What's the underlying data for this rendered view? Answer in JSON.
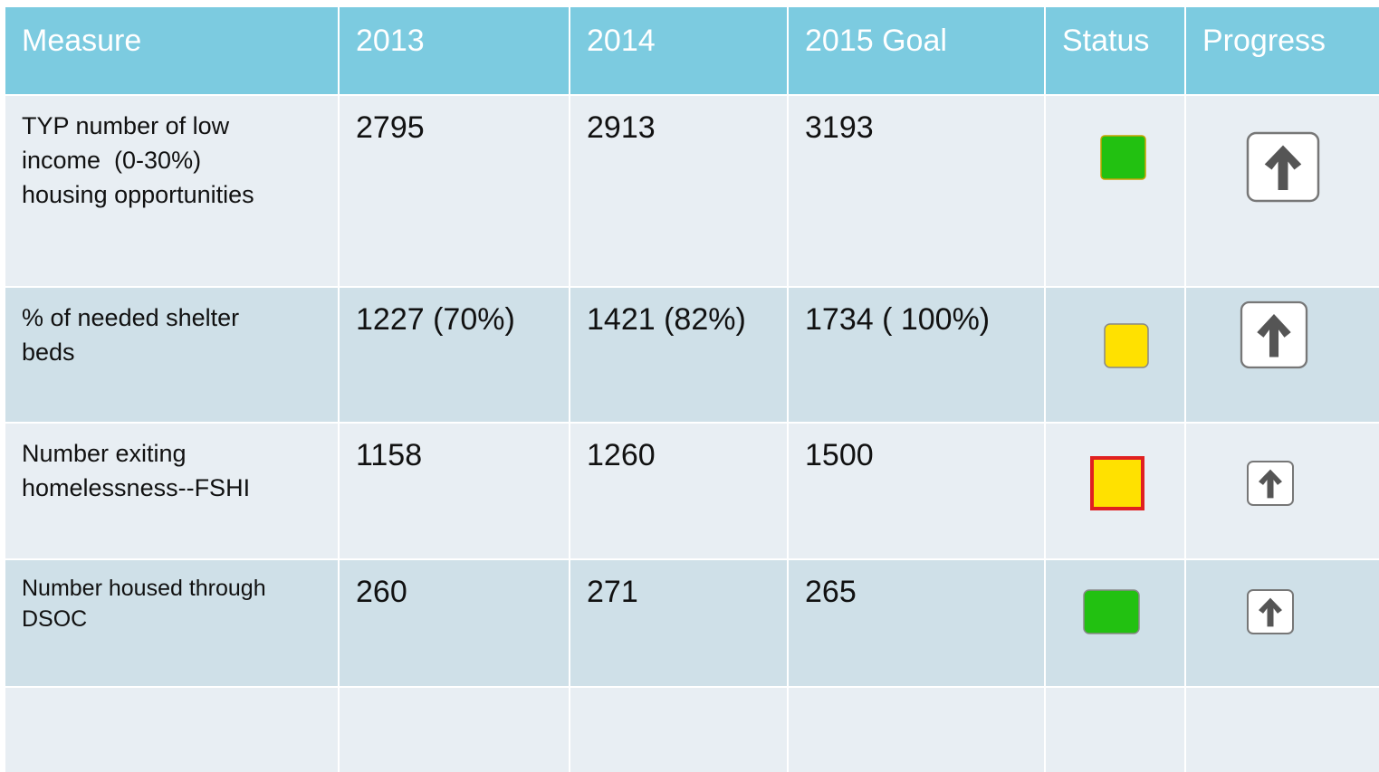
{
  "table": {
    "header": [
      "Measure",
      "2013",
      "2014",
      "2015 Goal",
      "Status",
      "Progress"
    ],
    "rows": [
      {
        "measure": [
          "TYP number of low",
          "income  (0-30%)",
          "housing opportunities"
        ],
        "cells": [
          "2795",
          "2913",
          "3193"
        ]
      },
      {
        "measure": [
          "% of needed shelter",
          "beds"
        ],
        "cells": [
          "1227 (70%)",
          "1421 (82%)",
          "1734 ( 100%)"
        ]
      },
      {
        "measure": [
          "Number exiting",
          "homelessness--FSHI"
        ],
        "cells": [
          "1158",
          "1260",
          "1500"
        ]
      },
      {
        "measure": [
          "Number housed through",
          "DSOC"
        ],
        "cells": [
          "260",
          "271",
          "265"
        ]
      }
    ]
  }
}
